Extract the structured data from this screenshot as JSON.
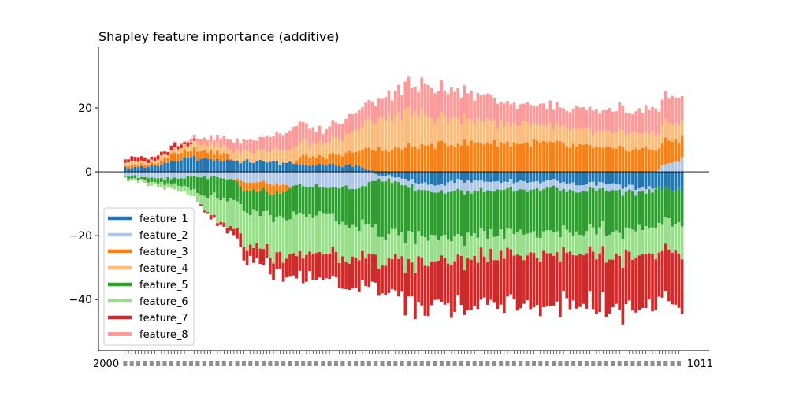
{
  "chart_data": {
    "type": "bar",
    "stacked": "diverging",
    "title": "Shapley feature importance (additive)",
    "xlabel": "",
    "ylabel": "",
    "ylim": [
      -56,
      39
    ],
    "yticks": [
      -40,
      -20,
      0,
      20
    ],
    "grid": false,
    "legend_position": "lower-left",
    "n_bars": 170,
    "x_tick_labels_note": "dense overlapping date-like tick labels along x axis (illegible)",
    "x_tick_start": "2000",
    "x_tick_end": "1011",
    "series": [
      {
        "name": "feature_1",
        "color": "#1f77b4",
        "keys": [
          [
            0,
            1.5
          ],
          [
            10,
            1.2
          ],
          [
            20,
            2.5
          ],
          [
            35,
            4.5
          ],
          [
            50,
            3.5
          ],
          [
            70,
            3
          ],
          [
            90,
            2.5
          ],
          [
            100,
            2
          ],
          [
            110,
            2
          ],
          [
            120,
            2
          ],
          [
            125,
            0.5
          ],
          [
            130,
            -1
          ],
          [
            140,
            -2
          ],
          [
            150,
            -3.5
          ],
          [
            160,
            -4
          ],
          [
            170,
            -3
          ],
          [
            180,
            -3
          ],
          [
            190,
            -3
          ],
          [
            200,
            -3
          ],
          [
            210,
            -3
          ],
          [
            220,
            -3
          ],
          [
            230,
            -4
          ],
          [
            240,
            -4
          ],
          [
            250,
            -4
          ],
          [
            260,
            -5
          ],
          [
            270,
            -5.5
          ],
          [
            285,
            -5.5
          ]
        ]
      },
      {
        "name": "feature_2",
        "color": "#aec7e8",
        "keys": [
          [
            0,
            -1.5
          ],
          [
            10,
            -1.5
          ],
          [
            20,
            -2
          ],
          [
            35,
            -1.5
          ],
          [
            50,
            -2
          ],
          [
            60,
            -3
          ],
          [
            70,
            -3.5
          ],
          [
            80,
            -4
          ],
          [
            90,
            -4.5
          ],
          [
            100,
            -4.5
          ],
          [
            110,
            -5
          ],
          [
            120,
            -5
          ],
          [
            125,
            -3
          ],
          [
            130,
            -1.5
          ],
          [
            140,
            -1.5
          ],
          [
            150,
            -2
          ],
          [
            160,
            -2.5
          ],
          [
            170,
            -3
          ],
          [
            180,
            -3
          ],
          [
            200,
            -2.5
          ],
          [
            220,
            -2.5
          ],
          [
            240,
            -2
          ],
          [
            250,
            -2
          ],
          [
            260,
            -1.5
          ],
          [
            270,
            -1
          ],
          [
            275,
            2
          ],
          [
            285,
            4
          ]
        ]
      },
      {
        "name": "feature_3",
        "color": "#ff7f0e",
        "keys": [
          [
            0,
            0.5
          ],
          [
            15,
            1
          ],
          [
            25,
            2.5
          ],
          [
            35,
            2.5
          ],
          [
            50,
            2.5
          ],
          [
            60,
            -2
          ],
          [
            70,
            -3
          ],
          [
            80,
            -3
          ],
          [
            90,
            2.5
          ],
          [
            100,
            2.5
          ],
          [
            110,
            3
          ],
          [
            120,
            5
          ],
          [
            130,
            7
          ],
          [
            150,
            8
          ],
          [
            170,
            9
          ],
          [
            190,
            9
          ],
          [
            210,
            9
          ],
          [
            230,
            8
          ],
          [
            250,
            7
          ],
          [
            270,
            7
          ],
          [
            285,
            7
          ]
        ]
      },
      {
        "name": "feature_4",
        "color": "#ffbb78",
        "keys": [
          [
            0,
            1
          ],
          [
            15,
            1
          ],
          [
            25,
            1.5
          ],
          [
            35,
            2
          ],
          [
            50,
            2.5
          ],
          [
            60,
            3
          ],
          [
            70,
            3.5
          ],
          [
            80,
            4
          ],
          [
            90,
            5
          ],
          [
            100,
            4
          ],
          [
            110,
            5
          ],
          [
            120,
            7
          ],
          [
            130,
            10
          ],
          [
            140,
            11
          ],
          [
            150,
            10
          ],
          [
            160,
            9
          ],
          [
            170,
            8
          ],
          [
            180,
            7
          ],
          [
            190,
            6
          ],
          [
            200,
            6
          ],
          [
            210,
            6
          ],
          [
            220,
            5
          ],
          [
            230,
            5
          ],
          [
            240,
            5
          ],
          [
            250,
            5
          ],
          [
            260,
            5
          ],
          [
            270,
            5
          ],
          [
            285,
            5
          ]
        ]
      },
      {
        "name": "feature_5",
        "color": "#2ca02c",
        "keys": [
          [
            0,
            -0.5
          ],
          [
            15,
            -1
          ],
          [
            25,
            -2
          ],
          [
            35,
            -4
          ],
          [
            40,
            -5.5
          ],
          [
            45,
            -6
          ],
          [
            50,
            -6
          ],
          [
            60,
            -6
          ],
          [
            70,
            -7
          ],
          [
            80,
            -8
          ],
          [
            90,
            -9
          ],
          [
            100,
            -9
          ],
          [
            110,
            -10
          ],
          [
            120,
            -12
          ],
          [
            130,
            -16
          ],
          [
            140,
            -16
          ],
          [
            150,
            -15
          ],
          [
            160,
            -15
          ],
          [
            170,
            -14
          ],
          [
            180,
            -14
          ],
          [
            190,
            -14
          ],
          [
            200,
            -14
          ],
          [
            210,
            -14
          ],
          [
            220,
            -14
          ],
          [
            230,
            -13
          ],
          [
            240,
            -13
          ],
          [
            250,
            -12
          ],
          [
            260,
            -12
          ],
          [
            270,
            -11
          ],
          [
            285,
            -11
          ]
        ]
      },
      {
        "name": "feature_6",
        "color": "#98df8a",
        "keys": [
          [
            0,
            -0.5
          ],
          [
            15,
            -1
          ],
          [
            25,
            -1.5
          ],
          [
            35,
            -2
          ],
          [
            40,
            -4
          ],
          [
            45,
            -6
          ],
          [
            50,
            -8
          ],
          [
            60,
            -10
          ],
          [
            70,
            -11
          ],
          [
            80,
            -12
          ],
          [
            90,
            -12
          ],
          [
            100,
            -12
          ],
          [
            110,
            -11
          ],
          [
            120,
            -10
          ],
          [
            130,
            -9
          ],
          [
            140,
            -9
          ],
          [
            150,
            -8
          ],
          [
            160,
            -7
          ],
          [
            170,
            -7
          ],
          [
            180,
            -7
          ],
          [
            190,
            -7
          ],
          [
            200,
            -7
          ],
          [
            210,
            -7
          ],
          [
            220,
            -7
          ],
          [
            230,
            -7
          ],
          [
            240,
            -7
          ],
          [
            250,
            -8
          ],
          [
            260,
            -8
          ],
          [
            270,
            -9
          ],
          [
            285,
            -9
          ]
        ]
      },
      {
        "name": "feature_7",
        "color": "#d62728",
        "keys": [
          [
            0,
            1
          ],
          [
            10,
            1
          ],
          [
            20,
            1
          ],
          [
            30,
            1
          ],
          [
            35,
            0.5
          ],
          [
            40,
            -0.5
          ],
          [
            45,
            -1
          ],
          [
            50,
            -1
          ],
          [
            55,
            -2
          ],
          [
            60,
            -4
          ],
          [
            70,
            -5
          ],
          [
            80,
            -6
          ],
          [
            90,
            -7
          ],
          [
            100,
            -8
          ],
          [
            110,
            -9
          ],
          [
            120,
            -9
          ],
          [
            130,
            -10
          ],
          [
            140,
            -11
          ],
          [
            150,
            -13
          ],
          [
            160,
            -14
          ],
          [
            170,
            -15
          ],
          [
            180,
            -15
          ],
          [
            190,
            -15
          ],
          [
            200,
            -15
          ],
          [
            210,
            -16
          ],
          [
            220,
            -16
          ],
          [
            230,
            -16
          ],
          [
            240,
            -16
          ],
          [
            250,
            -16
          ],
          [
            260,
            -16
          ],
          [
            270,
            -16
          ],
          [
            285,
            -16
          ]
        ]
      },
      {
        "name": "feature_8",
        "color": "#ff9896",
        "keys": [
          [
            0,
            0
          ],
          [
            20,
            0
          ],
          [
            30,
            0.5
          ],
          [
            35,
            1
          ],
          [
            45,
            2
          ],
          [
            55,
            3
          ],
          [
            70,
            4
          ],
          [
            80,
            5
          ],
          [
            90,
            6
          ],
          [
            100,
            4
          ],
          [
            110,
            5
          ],
          [
            120,
            6
          ],
          [
            130,
            7
          ],
          [
            140,
            8
          ],
          [
            150,
            9
          ],
          [
            160,
            9
          ],
          [
            170,
            9
          ],
          [
            180,
            8
          ],
          [
            190,
            7
          ],
          [
            200,
            6
          ],
          [
            210,
            6
          ],
          [
            220,
            6
          ],
          [
            230,
            6
          ],
          [
            240,
            7
          ],
          [
            250,
            7
          ],
          [
            260,
            7
          ],
          [
            270,
            8
          ],
          [
            285,
            8
          ]
        ]
      }
    ]
  }
}
